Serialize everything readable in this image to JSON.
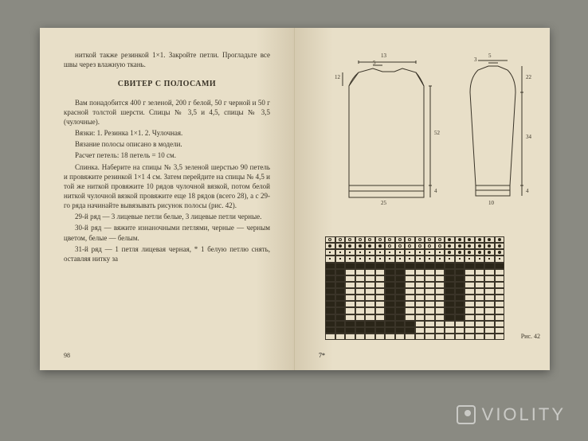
{
  "leftPage": {
    "intro": "ниткой также резинкой 1×1. Закройте петли. Прогладьте все швы через влажную ткань.",
    "title": "СВИТЕР С ПОЛОСАМИ",
    "p1": "Вам понадобится 400 г зеленой, 200 г белой, 50 г черной и 50 г красной толстой шерсти. Спицы № 3,5 и 4,5, спицы № 3,5 (чулочные).",
    "p2": "Вязки: 1. Резинка 1×1. 2. Чулочная.",
    "p3": "Вязание полосы описано в модели.",
    "p4": "Расчет петель: 18 петель = 10 см.",
    "p5": "Спинка. Наберите на спицы № 3,5 зеленой шерстью 90 петель и провяжите резинкой 1×1 4 см. Затем перейдите на спицы № 4,5 и той же ниткой провяжите 10 рядов чулочной вязкой, потом белой ниткой чулочной вязкой провяжите еще 18 рядов (всего 28), а с 29-го ряда начинайте вывязывать рисунок полосы (рис. 42).",
    "p6": "29-й ряд — 3 лицевые петли белые, 3 лицевые петли черные.",
    "p7": "30-й ряд — вяжите изнаночными петлями, черные — черным цветом, белые — белым.",
    "p8": "31-й ряд — 1 петля лицевая черная, * 1 белую петлю снять, оставляя нитку за",
    "pageNum": "98"
  },
  "rightPage": {
    "sig": "7*",
    "figLabel": "Рис. 42",
    "schematic": {
      "back": {
        "width": "25",
        "shoulder": "13",
        "neck": "5",
        "sideH": "12",
        "bodyH": "52",
        "hem": "4"
      },
      "sleeve": {
        "widthTop": "10",
        "shoulder": "3",
        "s5": "5",
        "h1": "22",
        "h2": "34",
        "hem": "4"
      }
    },
    "chart": {
      "cols": 18,
      "rows": 16,
      "colors": {
        "blank": "#e8dfc8",
        "black": "#2a2518",
        "dot": "dot",
        "circle": "circle"
      },
      "pattern": [
        "ccccccccccccoooooo",
        "ooooooccccccoooooo",
        "ddddddddddddoooooo",
        "dddddddddddddddddd",
        "kkkkkkkkkkkkkkkkkk",
        "kk....kk....kk....",
        "kk....kk....kk....",
        "kk....kk....kk....",
        "kk....kk....kk....",
        "kk....kk....kk....",
        "kk....kk....kk....",
        "kk....kk....kk....",
        "kk....kk....kk....",
        "kkkkkkkkk.........",
        "kkkkkkkkk.........",
        ".................."
      ]
    }
  },
  "watermark": "VIOLITY"
}
